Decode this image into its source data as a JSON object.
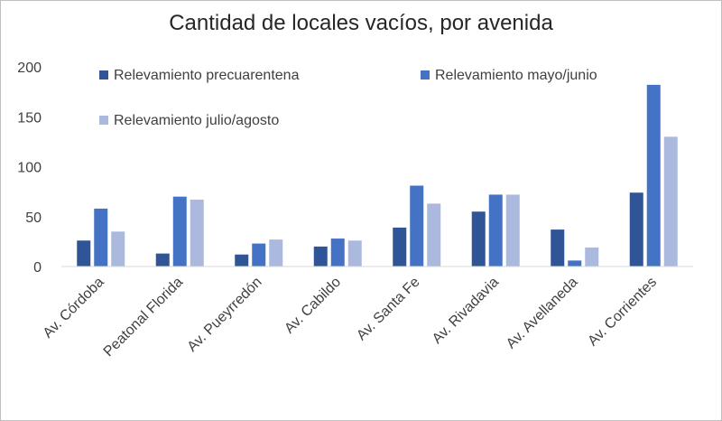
{
  "chart_data": {
    "type": "bar",
    "title": "Cantidad de locales vacíos, por avenida",
    "xlabel": "",
    "ylabel": "",
    "ylim": [
      0,
      200
    ],
    "yticks": [
      0,
      50,
      100,
      150,
      200
    ],
    "categories": [
      "Av. Córdoba",
      "Peatonal Florida",
      "Av. Pueyrredón",
      "Av. Cabildo",
      "Av. Santa Fe",
      "Av. Rivadavia",
      "Av. Avellaneda",
      "Av. Corrientes"
    ],
    "series": [
      {
        "name": "Relevamiento precuarentena",
        "color": "#2f5597",
        "values": [
          26,
          13,
          12,
          20,
          39,
          55,
          37,
          74
        ]
      },
      {
        "name": "Relevamiento mayo/junio",
        "color": "#4472c4",
        "values": [
          58,
          70,
          23,
          28,
          81,
          72,
          6,
          182
        ]
      },
      {
        "name": "Relevamiento julio/agosto",
        "color": "#aab9dd",
        "values": [
          35,
          67,
          27,
          26,
          63,
          72,
          19,
          130
        ]
      }
    ],
    "legend_position": "top",
    "grid": false
  }
}
